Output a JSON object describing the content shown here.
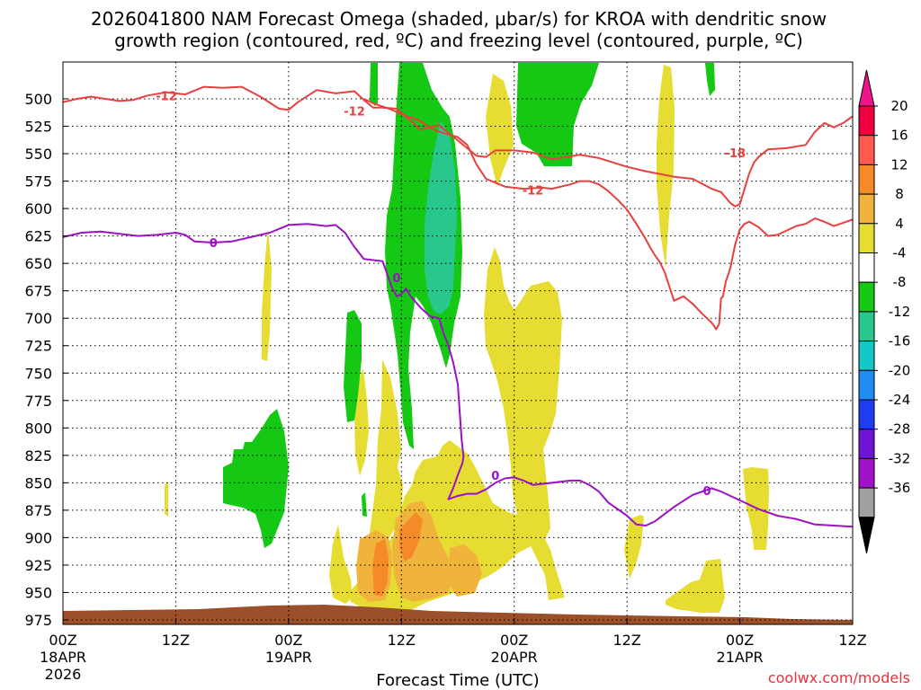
{
  "chart_data": {
    "type": "heatmap",
    "title_line1": "2026041800 NAM Forecast Omega (shaded, μbar/s) for KROA with dendritic snow",
    "title_line2": "growth region (contoured, red, ºC) and freezing level (contoured, purple, ºC)",
    "xlabel": "Forecast Time (UTC)",
    "credit": "coolwx.com/models",
    "x_range_hours": [
      0,
      84
    ],
    "y_range_mb": [
      480,
      985
    ],
    "y_ticks": [
      "500",
      "525",
      "550",
      "575",
      "600",
      "625",
      "650",
      "675",
      "700",
      "725",
      "750",
      "775",
      "800",
      "825",
      "850",
      "875",
      "900",
      "925",
      "950",
      "975"
    ],
    "x_ticks": [
      {
        "hour": 0,
        "line1": "00Z",
        "line2": "18APR",
        "line3": "2026"
      },
      {
        "hour": 12,
        "line1": "12Z",
        "line2": "",
        "line3": ""
      },
      {
        "hour": 24,
        "line1": "00Z",
        "line2": "19APR",
        "line3": ""
      },
      {
        "hour": 36,
        "line1": "12Z",
        "line2": "",
        "line3": ""
      },
      {
        "hour": 48,
        "line1": "00Z",
        "line2": "20APR",
        "line3": ""
      },
      {
        "hour": 60,
        "line1": "12Z",
        "line2": "",
        "line3": ""
      },
      {
        "hour": 72,
        "line1": "00Z",
        "line2": "21APR",
        "line3": ""
      },
      {
        "hour": 84,
        "line1": "12Z",
        "line2": "",
        "line3": ""
      }
    ],
    "colorbar": {
      "labels": [
        "20",
        "16",
        "12",
        "8",
        "4",
        "-4",
        "-8",
        "-12",
        "-16",
        "-20",
        "-24",
        "-28",
        "-32",
        "-36"
      ],
      "colors": [
        "#f0003c",
        "#ff5a50",
        "#f58a28",
        "#f0b43c",
        "#e6dc32",
        "#ffffff",
        "#14c814",
        "#28c88c",
        "#14c8c8",
        "#1e8cf0",
        "#1e3cf0",
        "#6e14d2",
        "#a014c8",
        "#a0a0a0"
      ],
      "top_arrow_color": "#f0148c",
      "bottom_arrow_color": "#000000"
    },
    "omega_fill": {
      "yellow": "#e6dc32",
      "orange": "#f0b43c",
      "dark_orange": "#f58a28",
      "green": "#14c814",
      "teal": "#28c88c"
    },
    "ground_color": "#9b4f2a",
    "contours": [
      {
        "name": "dgz-top-minus18",
        "color": "#e8403e",
        "points": [
          [
            0,
            503
          ],
          [
            1.5,
            500
          ],
          [
            3,
            498
          ],
          [
            4.5,
            500
          ],
          [
            6,
            502
          ],
          [
            7.5,
            501
          ],
          [
            9,
            497
          ],
          [
            11,
            494
          ],
          [
            13,
            496
          ],
          [
            15,
            489
          ],
          [
            17,
            490
          ],
          [
            19,
            489
          ],
          [
            21,
            498
          ],
          [
            23,
            509
          ],
          [
            24,
            510
          ],
          [
            25,
            503
          ],
          [
            27,
            492
          ],
          [
            29,
            495
          ],
          [
            31,
            493
          ],
          [
            32,
            501
          ],
          [
            33,
            508
          ],
          [
            34,
            508
          ],
          [
            35.5,
            509
          ],
          [
            37,
            520
          ],
          [
            38,
            528
          ],
          [
            40,
            524
          ],
          [
            42,
            538
          ],
          [
            44,
            552
          ],
          [
            45,
            553
          ],
          [
            46,
            547
          ],
          [
            48,
            547
          ],
          [
            50,
            549
          ],
          [
            52,
            555
          ],
          [
            55,
            551
          ],
          [
            57,
            554
          ],
          [
            60,
            562
          ],
          [
            62,
            566
          ],
          [
            65,
            571
          ],
          [
            67,
            573
          ],
          [
            69,
            582
          ],
          [
            70,
            585
          ],
          [
            70.5,
            590
          ],
          [
            71,
            595
          ],
          [
            71.5,
            598
          ],
          [
            72,
            596
          ],
          [
            72.5,
            582
          ],
          [
            73,
            568
          ],
          [
            73.5,
            558
          ],
          [
            74,
            553
          ],
          [
            75,
            546
          ],
          [
            77,
            545
          ],
          [
            79,
            542
          ],
          [
            80,
            530
          ],
          [
            81,
            522
          ],
          [
            82,
            526
          ],
          [
            83,
            522
          ],
          [
            84,
            516
          ]
        ],
        "labels": [
          {
            "text": "-12",
            "x": 11,
            "y": 497
          },
          {
            "text": "-12",
            "x": 31,
            "y": 511
          },
          {
            "text": "-18",
            "x": 71.5,
            "y": 549
          }
        ]
      },
      {
        "name": "dgz-bottom-minus12",
        "color": "#e8403e",
        "points": [
          [
            32,
            500
          ],
          [
            33,
            504
          ],
          [
            35,
            510
          ],
          [
            36,
            514
          ],
          [
            38,
            520
          ],
          [
            39,
            526
          ],
          [
            40,
            530
          ],
          [
            42,
            535
          ],
          [
            43,
            542
          ],
          [
            44,
            560
          ],
          [
            45,
            573
          ],
          [
            47,
            580
          ],
          [
            49,
            582
          ],
          [
            51,
            581
          ],
          [
            52,
            582
          ],
          [
            54,
            578
          ],
          [
            55,
            575
          ],
          [
            56,
            575
          ],
          [
            57,
            578
          ],
          [
            58,
            584
          ],
          [
            59,
            592
          ],
          [
            60,
            601
          ],
          [
            61,
            614
          ],
          [
            62,
            628
          ],
          [
            62.5,
            636
          ],
          [
            63,
            643
          ],
          [
            63.5,
            649
          ],
          [
            64,
            658
          ],
          [
            64.5,
            671
          ],
          [
            65,
            684
          ],
          [
            66,
            680
          ],
          [
            67,
            687
          ],
          [
            68,
            696
          ],
          [
            69,
            704
          ],
          [
            69.5,
            710
          ],
          [
            69.8,
            705
          ],
          [
            70,
            682
          ],
          [
            70.2,
            680
          ],
          [
            70.5,
            667
          ],
          [
            71,
            654
          ],
          [
            71.5,
            633
          ],
          [
            72,
            619
          ],
          [
            72.5,
            614
          ],
          [
            73,
            612
          ],
          [
            74,
            617
          ],
          [
            75,
            625
          ],
          [
            76,
            624
          ],
          [
            77,
            620
          ],
          [
            78,
            616
          ],
          [
            79,
            614
          ],
          [
            80,
            609
          ],
          [
            81,
            612
          ],
          [
            82,
            616
          ],
          [
            84,
            610
          ]
        ],
        "labels": [
          {
            "text": "-12",
            "x": 50,
            "y": 583
          }
        ]
      },
      {
        "name": "freezing-level-0C",
        "color": "#9b12c4",
        "points": [
          [
            0,
            626
          ],
          [
            2,
            622
          ],
          [
            4,
            621
          ],
          [
            6,
            623
          ],
          [
            8,
            625
          ],
          [
            10,
            624
          ],
          [
            12,
            622
          ],
          [
            13,
            624
          ],
          [
            14,
            630
          ],
          [
            16,
            631
          ],
          [
            18,
            630
          ],
          [
            20,
            626
          ],
          [
            22,
            622
          ],
          [
            24,
            615
          ],
          [
            26,
            614
          ],
          [
            28,
            616
          ],
          [
            29,
            615
          ],
          [
            30,
            622
          ],
          [
            31,
            635
          ],
          [
            32,
            646
          ],
          [
            33,
            647
          ],
          [
            34,
            648
          ],
          [
            34.5,
            660
          ],
          [
            35,
            672
          ],
          [
            35.5,
            680
          ],
          [
            36,
            678
          ],
          [
            36.5,
            673
          ],
          [
            37,
            680
          ],
          [
            38,
            690
          ],
          [
            39,
            698
          ],
          [
            40,
            700
          ],
          [
            40.5,
            714
          ],
          [
            41,
            725
          ],
          [
            41.5,
            740
          ],
          [
            42,
            760
          ],
          [
            42.2,
            785
          ],
          [
            42.4,
            810
          ],
          [
            42.6,
            826
          ],
          [
            42.5,
            832
          ],
          [
            42,
            843
          ],
          [
            41.5,
            855
          ],
          [
            41,
            865
          ],
          [
            42,
            862
          ],
          [
            43,
            860
          ],
          [
            44,
            860
          ],
          [
            45,
            856
          ],
          [
            46,
            850
          ],
          [
            47,
            846
          ],
          [
            48,
            845
          ],
          [
            49,
            848
          ],
          [
            50,
            852
          ],
          [
            52,
            850
          ],
          [
            54,
            848
          ],
          [
            55,
            848
          ],
          [
            56,
            852
          ],
          [
            57,
            858
          ],
          [
            58,
            868
          ],
          [
            60,
            880
          ],
          [
            61,
            888
          ],
          [
            62,
            889
          ],
          [
            63,
            885
          ],
          [
            65,
            872
          ],
          [
            67,
            861
          ],
          [
            69,
            855
          ],
          [
            70,
            858
          ],
          [
            72,
            866
          ],
          [
            74,
            874
          ],
          [
            76,
            880
          ],
          [
            78,
            883
          ],
          [
            80,
            888
          ],
          [
            82,
            889
          ],
          [
            84,
            890
          ]
        ],
        "labels": [
          {
            "text": "0",
            "x": 16,
            "y": 631
          },
          {
            "text": "0",
            "x": 35.5,
            "y": 663
          },
          {
            "text": "0",
            "x": 46,
            "y": 843
          },
          {
            "text": "0",
            "x": 68.5,
            "y": 857
          }
        ]
      }
    ]
  }
}
